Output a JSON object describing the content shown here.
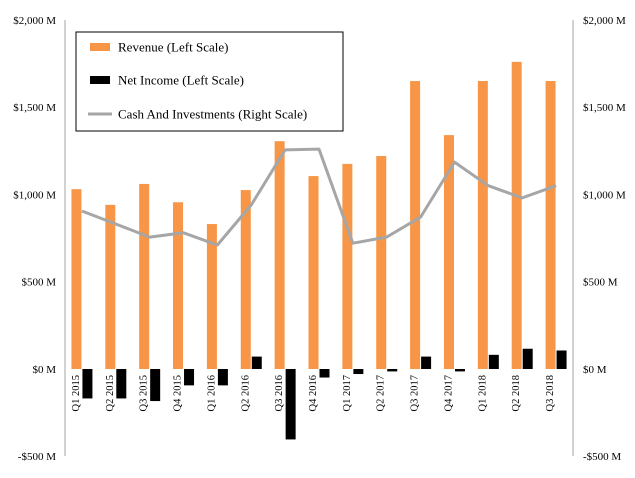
{
  "chart_data": {
    "type": "bar",
    "categories": [
      "Q1 2015",
      "Q2 2015",
      "Q3 2015",
      "Q4 2015",
      "Q1 2016",
      "Q2 2016",
      "Q3 2016",
      "Q4 2016",
      "Q1 2017",
      "Q2 2017",
      "Q3 2017",
      "Q4 2017",
      "Q1 2018",
      "Q2 2018",
      "Q3 2018"
    ],
    "series": [
      {
        "name": "Revenue (Left Scale)",
        "kind": "bar",
        "axis": "left",
        "color": "#f79646",
        "values": [
          1030,
          940,
          1060,
          955,
          830,
          1025,
          1305,
          1105,
          1175,
          1220,
          1650,
          1340,
          1650,
          1760,
          1650
        ]
      },
      {
        "name": "Net Income (Left Scale)",
        "kind": "bar",
        "axis": "left",
        "color": "#000000",
        "values": [
          -170,
          -170,
          -185,
          -95,
          -95,
          70,
          -405,
          -50,
          -30,
          -15,
          70,
          -15,
          80,
          115,
          105
        ]
      },
      {
        "name": "Cash And Investments (Right Scale)",
        "kind": "line",
        "axis": "right",
        "color": "#a6a6a6",
        "values": [
          905,
          830,
          755,
          780,
          710,
          940,
          1255,
          1260,
          720,
          755,
          870,
          1185,
          1050,
          980,
          1050
        ]
      }
    ],
    "left_axis": {
      "min": -500,
      "max": 2000,
      "ticks": [
        -500,
        0,
        500,
        1000,
        1500,
        2000
      ],
      "tick_labels": [
        "-$500 M",
        "$0 M",
        "$500 M",
        "$1,000 M",
        "$1,500 M",
        "$2,000 M"
      ]
    },
    "right_axis": {
      "min": -500,
      "max": 2000,
      "ticks": [
        -500,
        0,
        500,
        1000,
        1500,
        2000
      ],
      "tick_labels": [
        "-$500 M",
        "$0 M",
        "$500 M",
        "$1,000 M",
        "$1,500 M",
        "$2,000 M"
      ]
    },
    "grid": false,
    "legend_position": "top-left"
  }
}
